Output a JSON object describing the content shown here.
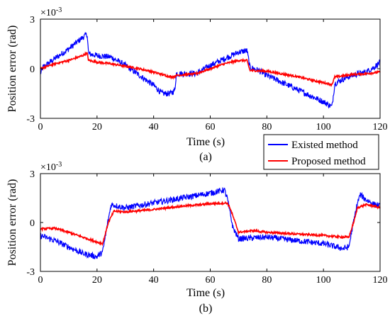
{
  "colors": {
    "existed": "#0000ff",
    "proposed": "#ff0000"
  },
  "legend": {
    "placement": "between-panels-right",
    "entries": [
      "Existed method",
      "Proposed method"
    ]
  },
  "chart_data": [
    {
      "type": "line",
      "panel_label": "(a)",
      "xlabel": "Time (s)",
      "ylabel": "Position error (rad)",
      "y_multiplier": "×10",
      "y_exponent": "-3",
      "xlim": [
        0,
        120
      ],
      "ylim": [
        -3,
        3
      ],
      "x_ticks": [
        "0",
        "20",
        "40",
        "60",
        "80",
        "100",
        "120"
      ],
      "y_ticks": [
        "-3",
        "0",
        "3"
      ],
      "grid": false,
      "series": [
        {
          "name": "Existed method",
          "color": "#0000ff",
          "noise": 0.18,
          "points": [
            [
              0,
              -0.3
            ],
            [
              1,
              0.1
            ],
            [
              5,
              0.6
            ],
            [
              10,
              1.2
            ],
            [
              15,
              1.9
            ],
            [
              16.5,
              2.1
            ],
            [
              17,
              0.9
            ],
            [
              20,
              0.8
            ],
            [
              25,
              0.7
            ],
            [
              30,
              0.2
            ],
            [
              35,
              -0.4
            ],
            [
              40,
              -1.0
            ],
            [
              43,
              -1.5
            ],
            [
              46,
              -1.5
            ],
            [
              47.5,
              -1.3
            ],
            [
              48,
              -0.3
            ],
            [
              50,
              -0.3
            ],
            [
              55,
              -0.3
            ],
            [
              60,
              0.2
            ],
            [
              65,
              0.6
            ],
            [
              70,
              1.0
            ],
            [
              73,
              1.1
            ],
            [
              74,
              0.1
            ],
            [
              77,
              -0.1
            ],
            [
              80,
              -0.4
            ],
            [
              85,
              -0.8
            ],
            [
              90,
              -1.2
            ],
            [
              95,
              -1.6
            ],
            [
              100,
              -2.0
            ],
            [
              103,
              -2.3
            ],
            [
              104,
              -0.9
            ],
            [
              106,
              -0.7
            ],
            [
              110,
              -0.4
            ],
            [
              115,
              -0.2
            ],
            [
              118,
              0.1
            ],
            [
              120,
              0.4
            ]
          ]
        },
        {
          "name": "Proposed method",
          "color": "#ff0000",
          "noise": 0.06,
          "points": [
            [
              0,
              0.0
            ],
            [
              5,
              0.3
            ],
            [
              10,
              0.5
            ],
            [
              15,
              0.8
            ],
            [
              16.5,
              0.95
            ],
            [
              17,
              0.5
            ],
            [
              20,
              0.4
            ],
            [
              25,
              0.3
            ],
            [
              30,
              0.15
            ],
            [
              35,
              0.0
            ],
            [
              40,
              -0.2
            ],
            [
              45,
              -0.45
            ],
            [
              47,
              -0.5
            ],
            [
              48,
              -0.4
            ],
            [
              55,
              -0.3
            ],
            [
              60,
              0.0
            ],
            [
              65,
              0.3
            ],
            [
              70,
              0.5
            ],
            [
              73,
              0.5
            ],
            [
              74,
              -0.1
            ],
            [
              80,
              -0.15
            ],
            [
              85,
              -0.3
            ],
            [
              90,
              -0.45
            ],
            [
              95,
              -0.65
            ],
            [
              100,
              -0.85
            ],
            [
              103,
              -0.95
            ],
            [
              104,
              -0.5
            ],
            [
              110,
              -0.35
            ],
            [
              115,
              -0.3
            ],
            [
              120,
              -0.2
            ]
          ]
        }
      ]
    },
    {
      "type": "line",
      "panel_label": "(b)",
      "xlabel": "Time (s)",
      "ylabel": "Position error (rad)",
      "y_multiplier": "×10",
      "y_exponent": "-3",
      "xlim": [
        0,
        120
      ],
      "ylim": [
        -3,
        3
      ],
      "x_ticks": [
        "0",
        "20",
        "40",
        "60",
        "80",
        "100",
        "120"
      ],
      "y_ticks": [
        "-3",
        "0",
        "3"
      ],
      "grid": false,
      "series": [
        {
          "name": "Existed method",
          "color": "#0000ff",
          "noise": 0.18,
          "points": [
            [
              0,
              -0.8
            ],
            [
              5,
              -1.1
            ],
            [
              10,
              -1.5
            ],
            [
              15,
              -1.9
            ],
            [
              20,
              -2.1
            ],
            [
              22,
              -1.8
            ],
            [
              24,
              0.2
            ],
            [
              25,
              1.1
            ],
            [
              30,
              0.9
            ],
            [
              40,
              1.2
            ],
            [
              50,
              1.5
            ],
            [
              60,
              1.8
            ],
            [
              65,
              2.0
            ],
            [
              66,
              1.5
            ],
            [
              68,
              -0.3
            ],
            [
              70,
              -1.0
            ],
            [
              80,
              -0.9
            ],
            [
              90,
              -1.1
            ],
            [
              100,
              -1.3
            ],
            [
              107,
              -1.6
            ],
            [
              109,
              -1.5
            ],
            [
              110,
              -0.5
            ],
            [
              112,
              1.2
            ],
            [
              113,
              1.7
            ],
            [
              115,
              1.4
            ],
            [
              118,
              1.1
            ],
            [
              120,
              1.0
            ]
          ]
        },
        {
          "name": "Proposed method",
          "color": "#ff0000",
          "noise": 0.06,
          "points": [
            [
              0,
              -0.4
            ],
            [
              5,
              -0.35
            ],
            [
              10,
              -0.6
            ],
            [
              15,
              -0.9
            ],
            [
              20,
              -1.2
            ],
            [
              22,
              -1.3
            ],
            [
              24,
              0.0
            ],
            [
              26,
              0.7
            ],
            [
              30,
              0.65
            ],
            [
              40,
              0.8
            ],
            [
              50,
              1.0
            ],
            [
              60,
              1.15
            ],
            [
              66,
              1.2
            ],
            [
              67,
              0.9
            ],
            [
              70,
              -0.6
            ],
            [
              75,
              -0.5
            ],
            [
              80,
              -0.6
            ],
            [
              90,
              -0.7
            ],
            [
              100,
              -0.8
            ],
            [
              107,
              -0.9
            ],
            [
              109,
              -0.9
            ],
            [
              111,
              0.2
            ],
            [
              112,
              0.9
            ],
            [
              115,
              1.1
            ],
            [
              118,
              1.0
            ],
            [
              120,
              0.9
            ]
          ]
        }
      ]
    }
  ]
}
